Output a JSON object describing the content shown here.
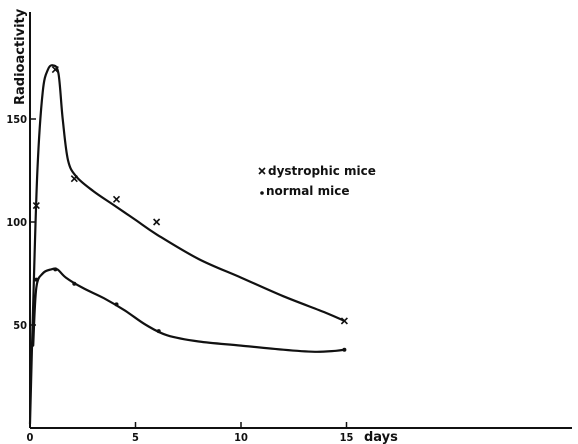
{
  "chart_data": {
    "type": "scatter",
    "title": "",
    "xlabel": "days",
    "ylabel": "Radioactivity",
    "xlim": [
      0,
      26
    ],
    "ylim": [
      0,
      200
    ],
    "x_ticks": [
      0,
      5,
      10,
      15
    ],
    "y_ticks": [
      50,
      100,
      150
    ],
    "x_tick_labels": [
      "0",
      "5",
      "10",
      "15"
    ],
    "y_tick_labels": [
      "50",
      "100",
      "150"
    ],
    "grid": false,
    "legend_position": "center-right",
    "series": [
      {
        "name": "dystrophic mice",
        "marker": "x",
        "points": [
          {
            "x": 0.3,
            "y": 108
          },
          {
            "x": 1.2,
            "y": 174
          },
          {
            "x": 2.1,
            "y": 121
          },
          {
            "x": 4.1,
            "y": 111
          },
          {
            "x": 6.0,
            "y": 100
          },
          {
            "x": 14.9,
            "y": 52
          }
        ],
        "curve": [
          {
            "x": 0.0,
            "y": 2
          },
          {
            "x": 0.15,
            "y": 60
          },
          {
            "x": 0.35,
            "y": 125
          },
          {
            "x": 0.6,
            "y": 163
          },
          {
            "x": 0.85,
            "y": 174
          },
          {
            "x": 1.1,
            "y": 176
          },
          {
            "x": 1.35,
            "y": 172
          },
          {
            "x": 1.55,
            "y": 150
          },
          {
            "x": 1.8,
            "y": 130
          },
          {
            "x": 2.2,
            "y": 122
          },
          {
            "x": 3.0,
            "y": 115
          },
          {
            "x": 4.0,
            "y": 108
          },
          {
            "x": 5.0,
            "y": 101
          },
          {
            "x": 6.0,
            "y": 94
          },
          {
            "x": 8.0,
            "y": 82
          },
          {
            "x": 10.0,
            "y": 73
          },
          {
            "x": 12.0,
            "y": 64
          },
          {
            "x": 14.0,
            "y": 56
          },
          {
            "x": 14.9,
            "y": 52
          }
        ]
      },
      {
        "name": "normal mice",
        "marker": "dot",
        "points": [
          {
            "x": 0.3,
            "y": 72
          },
          {
            "x": 1.2,
            "y": 77
          },
          {
            "x": 2.1,
            "y": 70
          },
          {
            "x": 4.1,
            "y": 60
          },
          {
            "x": 6.1,
            "y": 47
          },
          {
            "x": 14.9,
            "y": 38
          }
        ],
        "curve": [
          {
            "x": 0.15,
            "y": 40
          },
          {
            "x": 0.3,
            "y": 68
          },
          {
            "x": 0.6,
            "y": 75
          },
          {
            "x": 1.0,
            "y": 77
          },
          {
            "x": 1.3,
            "y": 77
          },
          {
            "x": 1.7,
            "y": 73
          },
          {
            "x": 2.5,
            "y": 68
          },
          {
            "x": 3.5,
            "y": 63
          },
          {
            "x": 4.5,
            "y": 57
          },
          {
            "x": 5.5,
            "y": 50
          },
          {
            "x": 6.5,
            "y": 45
          },
          {
            "x": 8.0,
            "y": 42
          },
          {
            "x": 10.0,
            "y": 40
          },
          {
            "x": 12.0,
            "y": 38
          },
          {
            "x": 13.5,
            "y": 37
          },
          {
            "x": 14.5,
            "y": 37.5
          },
          {
            "x": 14.9,
            "y": 38
          }
        ]
      }
    ]
  }
}
